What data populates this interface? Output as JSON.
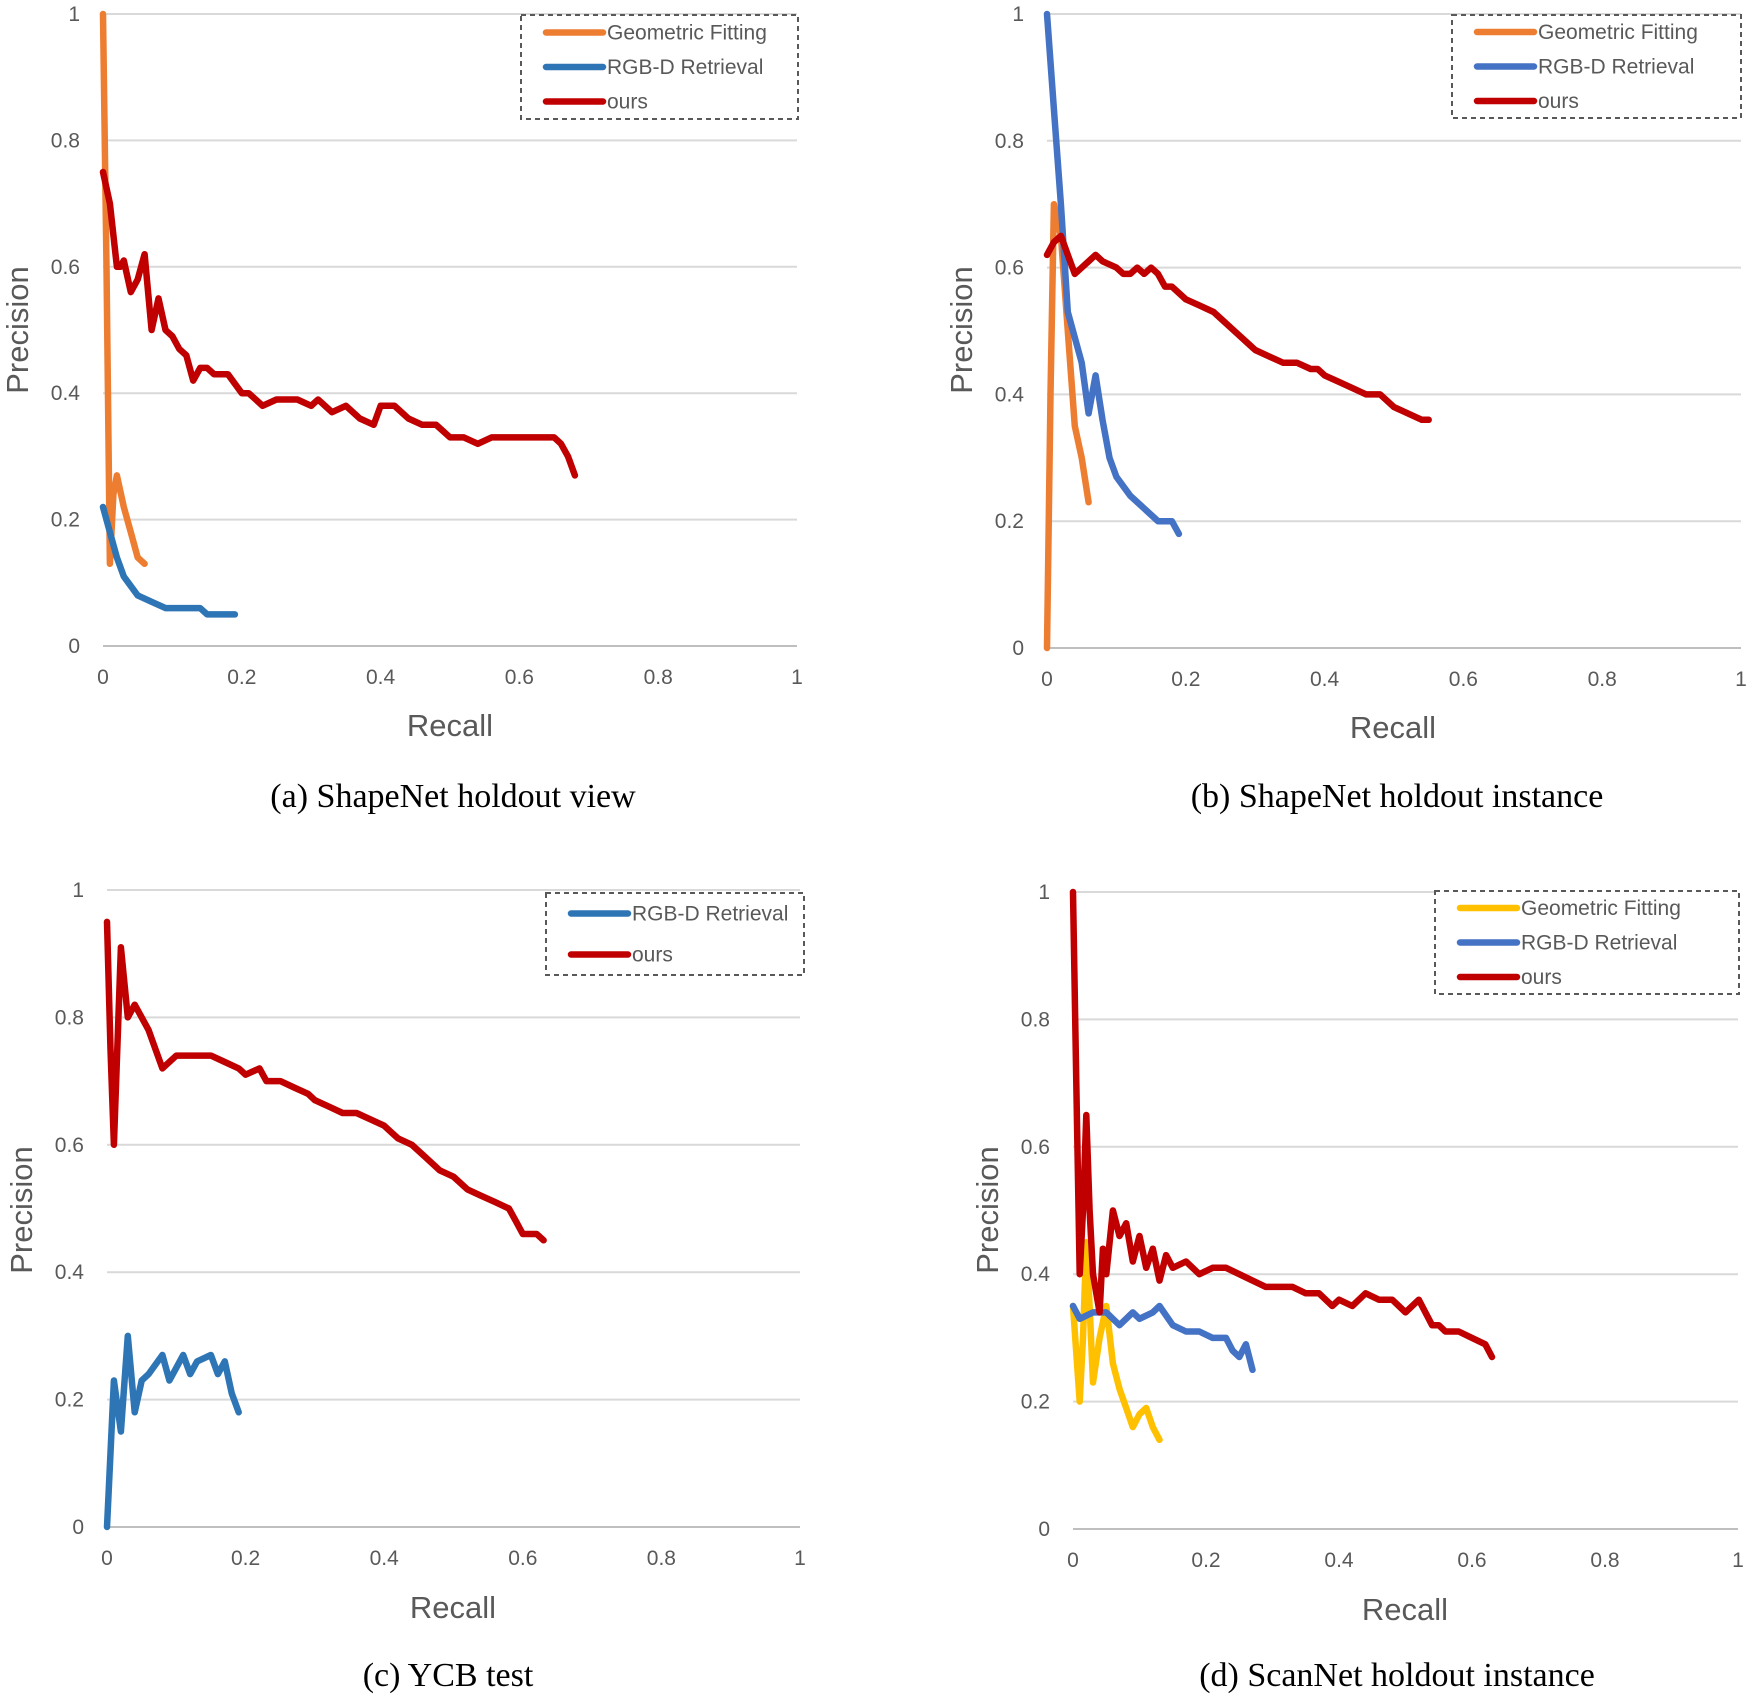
{
  "colors": {
    "geometric_orange": "#ED7D31",
    "retrieval_blue_a": "#2E75B6",
    "retrieval_blue_b": "#4472C4",
    "ours_red": "#C00000",
    "geometric_yellow": "#FFC000",
    "grid": "#D9D9D9",
    "text": "#595959"
  },
  "chart_data": [
    {
      "type": "line",
      "caption": "(a) ShapeNet holdout view",
      "xlabel": "Recall",
      "ylabel": "Precision",
      "xlim": [
        0,
        1
      ],
      "ylim": [
        0,
        1
      ],
      "xticks": [
        "0",
        "0.2",
        "0.4",
        "0.6",
        "0.8",
        "1"
      ],
      "yticks": [
        "0",
        "0.2",
        "0.4",
        "0.6",
        "0.8",
        "1"
      ],
      "legend_position": "top-right",
      "series": [
        {
          "name": "Geometric Fitting",
          "color": "#ED7D31",
          "x": [
            0,
            0.005,
            0.01,
            0.015,
            0.02,
            0.03,
            0.04,
            0.05,
            0.06
          ],
          "y": [
            1,
            0.6,
            0.13,
            0.24,
            0.27,
            0.22,
            0.18,
            0.14,
            0.13
          ]
        },
        {
          "name": "RGB-D Retrieval",
          "color": "#2E75B6",
          "x": [
            0,
            0.01,
            0.02,
            0.03,
            0.05,
            0.07,
            0.09,
            0.1,
            0.12,
            0.14,
            0.15,
            0.17,
            0.19
          ],
          "y": [
            0.22,
            0.18,
            0.14,
            0.11,
            0.08,
            0.07,
            0.06,
            0.06,
            0.06,
            0.06,
            0.05,
            0.05,
            0.05
          ]
        },
        {
          "name": "ours",
          "color": "#C00000",
          "x": [
            0,
            0.01,
            0.02,
            0.025,
            0.03,
            0.04,
            0.05,
            0.06,
            0.07,
            0.08,
            0.09,
            0.1,
            0.11,
            0.12,
            0.13,
            0.14,
            0.15,
            0.16,
            0.18,
            0.2,
            0.21,
            0.22,
            0.23,
            0.25,
            0.28,
            0.3,
            0.31,
            0.33,
            0.35,
            0.37,
            0.39,
            0.4,
            0.42,
            0.44,
            0.46,
            0.48,
            0.5,
            0.52,
            0.54,
            0.56,
            0.58,
            0.6,
            0.61,
            0.63,
            0.64,
            0.65,
            0.66,
            0.67,
            0.68
          ],
          "y": [
            0.75,
            0.7,
            0.6,
            0.6,
            0.61,
            0.56,
            0.58,
            0.62,
            0.5,
            0.55,
            0.5,
            0.49,
            0.47,
            0.46,
            0.42,
            0.44,
            0.44,
            0.43,
            0.43,
            0.4,
            0.4,
            0.39,
            0.38,
            0.39,
            0.39,
            0.38,
            0.39,
            0.37,
            0.38,
            0.36,
            0.35,
            0.38,
            0.38,
            0.36,
            0.35,
            0.35,
            0.33,
            0.33,
            0.32,
            0.33,
            0.33,
            0.33,
            0.33,
            0.33,
            0.33,
            0.33,
            0.32,
            0.3,
            0.27
          ]
        }
      ]
    },
    {
      "type": "line",
      "caption": "(b) ShapeNet holdout instance",
      "xlabel": "Recall",
      "ylabel": "Precision",
      "xlim": [
        0,
        1
      ],
      "ylim": [
        0,
        1
      ],
      "xticks": [
        "0",
        "0.2",
        "0.4",
        "0.6",
        "0.8",
        "1"
      ],
      "yticks": [
        "0",
        "0.2",
        "0.4",
        "0.6",
        "0.8",
        "1"
      ],
      "legend_position": "top-right",
      "series": [
        {
          "name": "Geometric Fitting",
          "color": "#ED7D31",
          "x": [
            0,
            0.005,
            0.01,
            0.02,
            0.03,
            0.04,
            0.05,
            0.06
          ],
          "y": [
            0,
            0.4,
            0.7,
            0.65,
            0.5,
            0.35,
            0.3,
            0.23
          ]
        },
        {
          "name": "RGB-D Retrieval",
          "color": "#4472C4",
          "x": [
            0,
            0.01,
            0.02,
            0.03,
            0.05,
            0.06,
            0.07,
            0.08,
            0.09,
            0.1,
            0.12,
            0.14,
            0.16,
            0.18,
            0.19
          ],
          "y": [
            1,
            0.85,
            0.7,
            0.53,
            0.45,
            0.37,
            0.43,
            0.36,
            0.3,
            0.27,
            0.24,
            0.22,
            0.2,
            0.2,
            0.18
          ]
        },
        {
          "name": "ours",
          "color": "#C00000",
          "x": [
            0,
            0.01,
            0.02,
            0.03,
            0.04,
            0.05,
            0.06,
            0.07,
            0.08,
            0.1,
            0.11,
            0.12,
            0.13,
            0.14,
            0.15,
            0.16,
            0.17,
            0.18,
            0.2,
            0.22,
            0.24,
            0.25,
            0.27,
            0.29,
            0.3,
            0.32,
            0.34,
            0.36,
            0.38,
            0.39,
            0.4,
            0.42,
            0.44,
            0.46,
            0.48,
            0.5,
            0.52,
            0.54,
            0.55
          ],
          "y": [
            0.62,
            0.64,
            0.65,
            0.62,
            0.59,
            0.6,
            0.61,
            0.62,
            0.61,
            0.6,
            0.59,
            0.59,
            0.6,
            0.59,
            0.6,
            0.59,
            0.57,
            0.57,
            0.55,
            0.54,
            0.53,
            0.52,
            0.5,
            0.48,
            0.47,
            0.46,
            0.45,
            0.45,
            0.44,
            0.44,
            0.43,
            0.42,
            0.41,
            0.4,
            0.4,
            0.38,
            0.37,
            0.36,
            0.36
          ]
        }
      ]
    },
    {
      "type": "line",
      "caption": "(c) YCB test",
      "xlabel": "Recall",
      "ylabel": "Precision",
      "xlim": [
        0,
        1
      ],
      "ylim": [
        0,
        1
      ],
      "xticks": [
        "0",
        "0.2",
        "0.4",
        "0.6",
        "0.8",
        "1"
      ],
      "yticks": [
        "0",
        "0.2",
        "0.4",
        "0.6",
        "0.8",
        "1"
      ],
      "legend_position": "top-right",
      "series": [
        {
          "name": "RGB-D Retrieval",
          "color": "#2E75B6",
          "x": [
            0,
            0.01,
            0.02,
            0.03,
            0.04,
            0.05,
            0.06,
            0.08,
            0.09,
            0.1,
            0.11,
            0.12,
            0.13,
            0.15,
            0.16,
            0.17,
            0.18,
            0.19
          ],
          "y": [
            0,
            0.23,
            0.15,
            0.3,
            0.18,
            0.23,
            0.24,
            0.27,
            0.23,
            0.25,
            0.27,
            0.24,
            0.26,
            0.27,
            0.24,
            0.26,
            0.21,
            0.18
          ]
        },
        {
          "name": "ours",
          "color": "#C00000",
          "x": [
            0,
            0.005,
            0.01,
            0.02,
            0.03,
            0.04,
            0.05,
            0.06,
            0.07,
            0.08,
            0.1,
            0.12,
            0.14,
            0.15,
            0.17,
            0.19,
            0.2,
            0.22,
            0.23,
            0.25,
            0.27,
            0.29,
            0.3,
            0.32,
            0.34,
            0.36,
            0.38,
            0.4,
            0.41,
            0.42,
            0.44,
            0.46,
            0.48,
            0.5,
            0.52,
            0.54,
            0.56,
            0.58,
            0.59,
            0.6,
            0.62,
            0.63
          ],
          "y": [
            0.95,
            0.75,
            0.6,
            0.91,
            0.8,
            0.82,
            0.8,
            0.78,
            0.75,
            0.72,
            0.74,
            0.74,
            0.74,
            0.74,
            0.73,
            0.72,
            0.71,
            0.72,
            0.7,
            0.7,
            0.69,
            0.68,
            0.67,
            0.66,
            0.65,
            0.65,
            0.64,
            0.63,
            0.62,
            0.61,
            0.6,
            0.58,
            0.56,
            0.55,
            0.53,
            0.52,
            0.51,
            0.5,
            0.48,
            0.46,
            0.46,
            0.45
          ]
        }
      ]
    },
    {
      "type": "line",
      "caption": "(d) ScanNet holdout instance",
      "xlabel": "Recall",
      "ylabel": "Precision",
      "xlim": [
        0,
        1
      ],
      "ylim": [
        0,
        1
      ],
      "xticks": [
        "0",
        "0.2",
        "0.4",
        "0.6",
        "0.8",
        "1"
      ],
      "yticks": [
        "0",
        "0.2",
        "0.4",
        "0.6",
        "0.8",
        "1"
      ],
      "legend_position": "top-right",
      "series": [
        {
          "name": "Geometric Fitting",
          "color": "#FFC000",
          "x": [
            0,
            0.01,
            0.015,
            0.02,
            0.025,
            0.03,
            0.04,
            0.05,
            0.06,
            0.07,
            0.08,
            0.09,
            0.1,
            0.11,
            0.12,
            0.13
          ],
          "y": [
            0.35,
            0.2,
            0.3,
            0.45,
            0.35,
            0.23,
            0.3,
            0.35,
            0.26,
            0.22,
            0.19,
            0.16,
            0.18,
            0.19,
            0.16,
            0.14
          ]
        },
        {
          "name": "RGB-D Retrieval",
          "color": "#4472C4",
          "x": [
            0,
            0.01,
            0.03,
            0.05,
            0.07,
            0.09,
            0.1,
            0.12,
            0.13,
            0.15,
            0.17,
            0.19,
            0.21,
            0.22,
            0.23,
            0.24,
            0.25,
            0.26,
            0.27
          ],
          "y": [
            0.35,
            0.33,
            0.34,
            0.34,
            0.32,
            0.34,
            0.33,
            0.34,
            0.35,
            0.32,
            0.31,
            0.31,
            0.3,
            0.3,
            0.3,
            0.28,
            0.27,
            0.29,
            0.25
          ]
        },
        {
          "name": "ours",
          "color": "#C00000",
          "x": [
            0,
            0.005,
            0.01,
            0.015,
            0.02,
            0.025,
            0.03,
            0.04,
            0.045,
            0.05,
            0.06,
            0.07,
            0.08,
            0.09,
            0.1,
            0.11,
            0.12,
            0.13,
            0.14,
            0.15,
            0.17,
            0.19,
            0.21,
            0.23,
            0.25,
            0.27,
            0.29,
            0.31,
            0.33,
            0.35,
            0.37,
            0.39,
            0.4,
            0.42,
            0.44,
            0.46,
            0.48,
            0.5,
            0.52,
            0.54,
            0.55,
            0.56,
            0.58,
            0.6,
            0.62,
            0.63
          ],
          "y": [
            1,
            0.7,
            0.4,
            0.5,
            0.65,
            0.5,
            0.4,
            0.34,
            0.44,
            0.4,
            0.5,
            0.46,
            0.48,
            0.42,
            0.46,
            0.41,
            0.44,
            0.39,
            0.43,
            0.41,
            0.42,
            0.4,
            0.41,
            0.41,
            0.4,
            0.39,
            0.38,
            0.38,
            0.38,
            0.37,
            0.37,
            0.35,
            0.36,
            0.35,
            0.37,
            0.36,
            0.36,
            0.34,
            0.36,
            0.32,
            0.32,
            0.31,
            0.31,
            0.3,
            0.29,
            0.27
          ]
        }
      ]
    }
  ]
}
